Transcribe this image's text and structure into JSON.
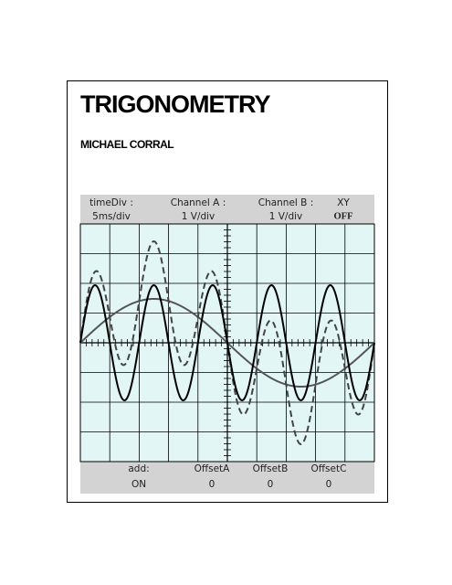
{
  "cover": {
    "title": "TRIGONOMETRY",
    "author": "MICHAEL CORRAL"
  },
  "scope": {
    "header": [
      [
        "timeDiv :",
        "5ms/div"
      ],
      [
        "Channel A :",
        "1 V/div"
      ],
      [
        "Channel B :",
        "1 V/div"
      ],
      [
        "XY",
        "OFF"
      ]
    ],
    "footer": [
      [
        "add:",
        "ON"
      ],
      [
        "OffsetA",
        "0"
      ],
      [
        "OffsetB",
        "0"
      ],
      [
        "OffsetC",
        "0"
      ]
    ]
  }
}
